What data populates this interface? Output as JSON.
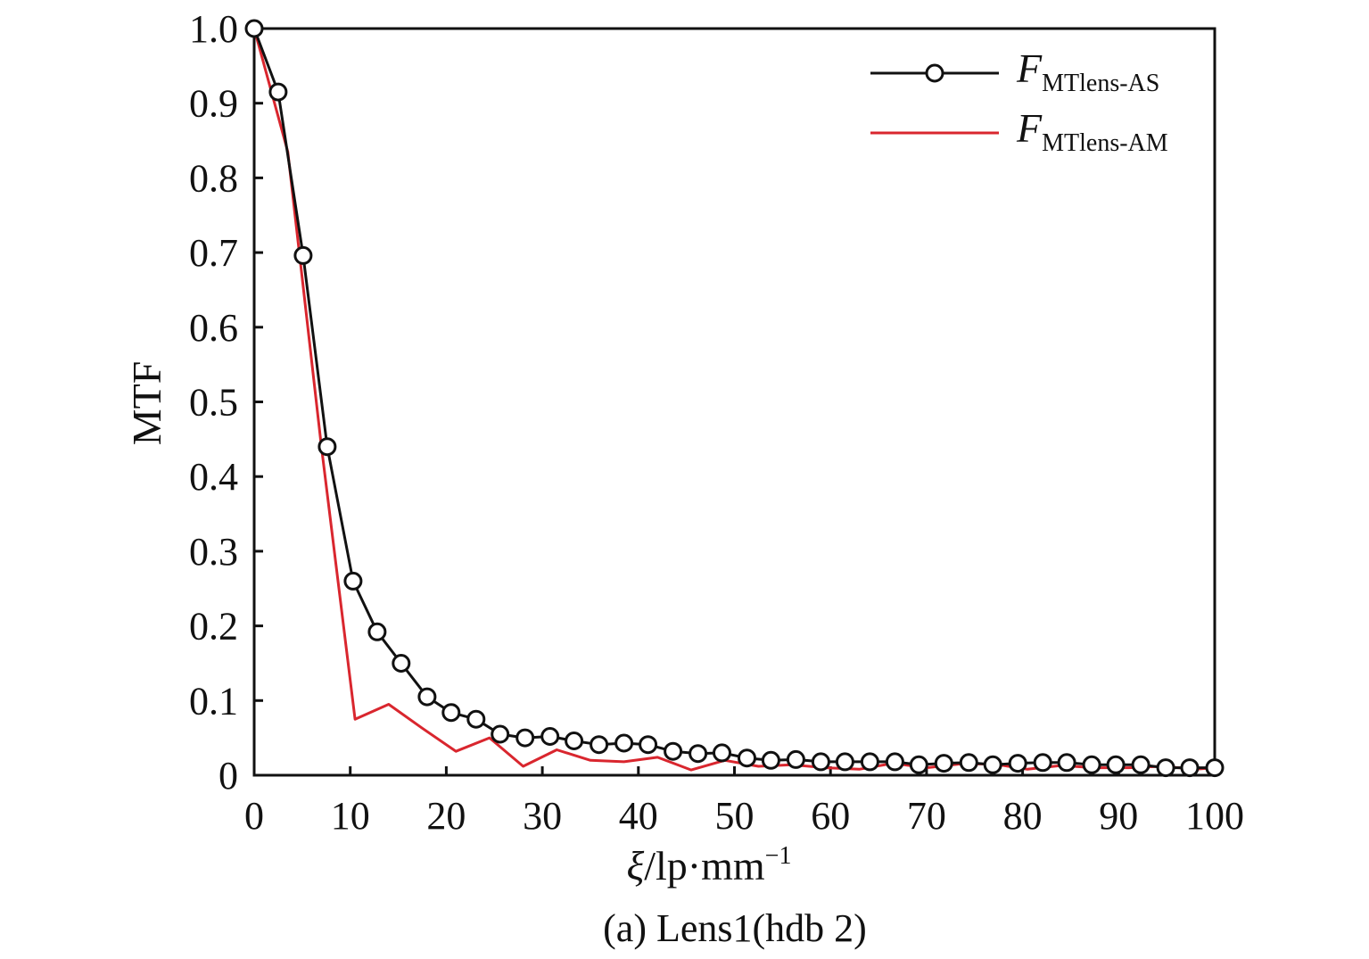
{
  "chart_data": {
    "type": "line",
    "title": "",
    "caption": "(a) Lens1(hdb 2)",
    "xlabel": {
      "symbol": "ξ",
      "rest": "/lp·mm",
      "sup": "−1"
    },
    "ylabel": "MTF",
    "xlim": [
      0,
      100
    ],
    "ylim": [
      0,
      1.0
    ],
    "xticks": [
      0,
      10,
      20,
      30,
      40,
      50,
      60,
      70,
      80,
      90,
      100
    ],
    "yticks": [
      0,
      0.1,
      0.2,
      0.3,
      0.4,
      0.5,
      0.6,
      0.7,
      0.8,
      0.9,
      1.0
    ],
    "ytick_labels": [
      "0",
      "0.1",
      "0.2",
      "0.3",
      "0.4",
      "0.5",
      "0.6",
      "0.7",
      "0.8",
      "0.9",
      "1.0"
    ],
    "legend_position": "top-right",
    "grid": false,
    "series": [
      {
        "name_main": "F",
        "name_sub": "MTlens-AS",
        "color": "#111111",
        "marker": "circle",
        "points": [
          [
            0,
            1.0
          ],
          [
            2.5,
            0.915
          ],
          [
            5.1,
            0.696
          ],
          [
            7.6,
            0.44
          ],
          [
            10.3,
            0.26
          ],
          [
            12.8,
            0.192
          ],
          [
            15.3,
            0.15
          ],
          [
            18.0,
            0.105
          ],
          [
            20.5,
            0.084
          ],
          [
            23.1,
            0.075
          ],
          [
            25.6,
            0.055
          ],
          [
            28.2,
            0.05
          ],
          [
            30.8,
            0.052
          ],
          [
            33.3,
            0.046
          ],
          [
            35.9,
            0.041
          ],
          [
            38.5,
            0.043
          ],
          [
            41.0,
            0.041
          ],
          [
            43.6,
            0.032
          ],
          [
            46.2,
            0.029
          ],
          [
            48.7,
            0.03
          ],
          [
            51.3,
            0.023
          ],
          [
            53.8,
            0.02
          ],
          [
            56.4,
            0.021
          ],
          [
            59.0,
            0.018
          ],
          [
            61.5,
            0.018
          ],
          [
            64.1,
            0.018
          ],
          [
            66.7,
            0.018
          ],
          [
            69.2,
            0.014
          ],
          [
            71.8,
            0.016
          ],
          [
            74.4,
            0.017
          ],
          [
            76.9,
            0.014
          ],
          [
            79.5,
            0.016
          ],
          [
            82.1,
            0.017
          ],
          [
            84.6,
            0.017
          ],
          [
            87.2,
            0.014
          ],
          [
            89.7,
            0.014
          ],
          [
            92.3,
            0.014
          ],
          [
            94.9,
            0.01
          ],
          [
            97.4,
            0.01
          ],
          [
            100.0,
            0.01
          ]
        ]
      },
      {
        "name_main": "F",
        "name_sub": "MTlens-AM",
        "color": "#d9262e",
        "marker": "none",
        "points": [
          [
            0,
            1.0
          ],
          [
            3.5,
            0.835
          ],
          [
            7.0,
            0.44
          ],
          [
            10.5,
            0.075
          ],
          [
            14.0,
            0.095
          ],
          [
            17.5,
            0.063
          ],
          [
            21.0,
            0.032
          ],
          [
            24.5,
            0.05
          ],
          [
            28.0,
            0.012
          ],
          [
            31.5,
            0.034
          ],
          [
            35.0,
            0.02
          ],
          [
            38.5,
            0.018
          ],
          [
            42.0,
            0.024
          ],
          [
            45.5,
            0.007
          ],
          [
            49.0,
            0.02
          ],
          [
            52.5,
            0.012
          ],
          [
            56.0,
            0.014
          ],
          [
            59.5,
            0.01
          ],
          [
            63.0,
            0.008
          ],
          [
            66.5,
            0.016
          ],
          [
            70.0,
            0.01
          ],
          [
            73.5,
            0.015
          ],
          [
            77.0,
            0.015
          ],
          [
            80.5,
            0.008
          ],
          [
            84.0,
            0.013
          ],
          [
            87.5,
            0.01
          ],
          [
            91.0,
            0.01
          ],
          [
            94.5,
            0.012
          ],
          [
            98.0,
            0.008
          ],
          [
            100.0,
            0.01
          ]
        ]
      }
    ]
  }
}
